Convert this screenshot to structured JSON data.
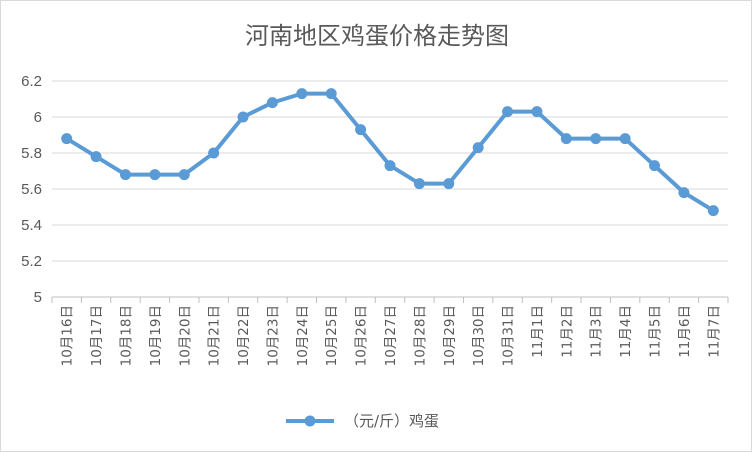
{
  "chart_data": {
    "type": "line",
    "title": "河南地区鸡蛋价格走势图",
    "categories": [
      "10月16日",
      "10月17日",
      "10月18日",
      "10月19日",
      "10月20日",
      "10月21日",
      "10月22日",
      "10月23日",
      "10月24日",
      "10月25日",
      "10月26日",
      "10月27日",
      "10月28日",
      "10月29日",
      "10月30日",
      "10月31日",
      "11月1日",
      "11月2日",
      "11月3日",
      "11月4日",
      "11月5日",
      "11月6日",
      "11月7日"
    ],
    "series": [
      {
        "name": "（元/斤）鸡蛋",
        "values": [
          5.88,
          5.78,
          5.68,
          5.68,
          5.68,
          5.8,
          6.0,
          6.08,
          6.13,
          6.13,
          5.93,
          5.73,
          5.63,
          5.63,
          5.83,
          6.03,
          6.03,
          5.88,
          5.88,
          5.88,
          5.73,
          5.58,
          5.48
        ]
      }
    ],
    "ylim": [
      5,
      6.2
    ],
    "yticks": [
      "5",
      "5.2",
      "5.4",
      "5.6",
      "5.8",
      "6",
      "6.2"
    ],
    "ytick_values": [
      5,
      5.2,
      5.4,
      5.6,
      5.8,
      6,
      6.2
    ],
    "grid": true,
    "legend_position": "bottom",
    "colors": {
      "series": "#5b9bd5",
      "grid": "#d9d9d9",
      "text": "#595959"
    }
  }
}
